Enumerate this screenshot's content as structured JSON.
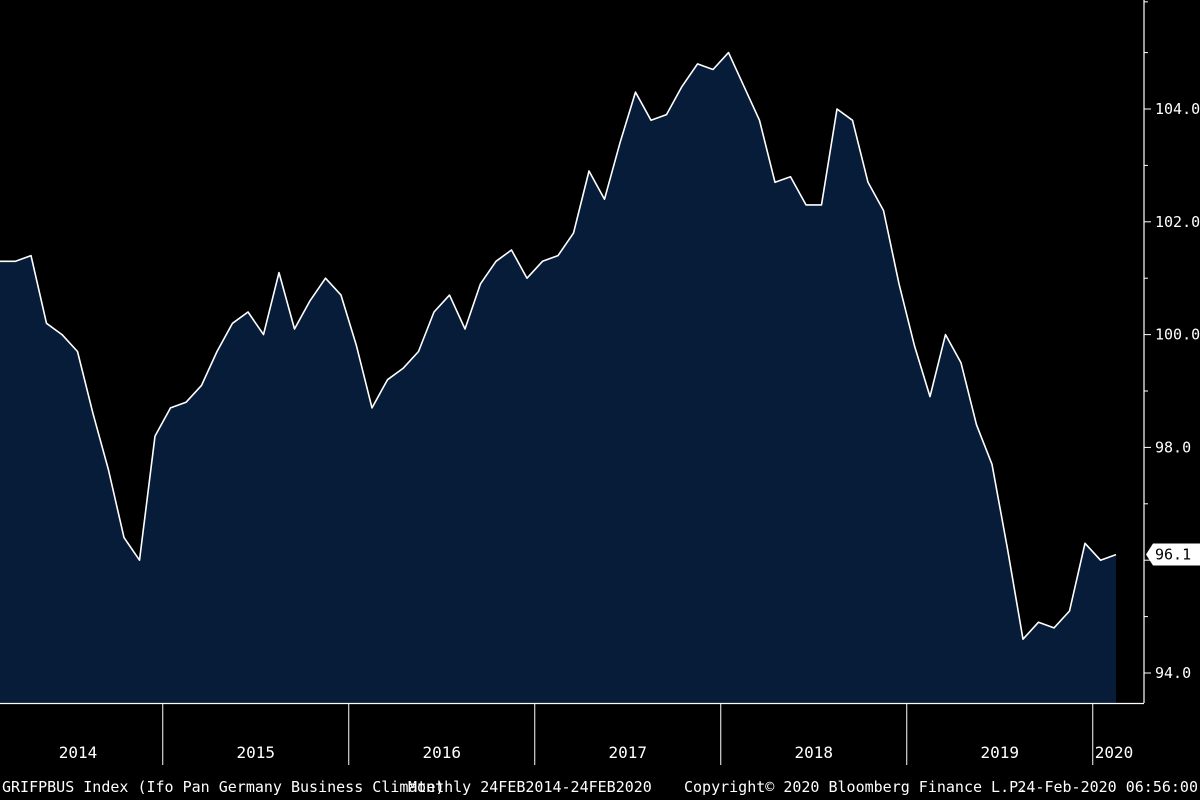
{
  "chart_data": {
    "type": "area",
    "title": "",
    "xlabel": "",
    "ylabel": "",
    "ylim": [
      93.5,
      105.8
    ],
    "yticks": [
      "94.0",
      "96.0",
      "98.0",
      "100.0",
      "102.0",
      "104.0"
    ],
    "years": [
      "2014",
      "2015",
      "2016",
      "2017",
      "2018",
      "2019",
      "2020"
    ],
    "last_value_label": "96.1",
    "x": [
      "2014-02",
      "2014-03",
      "2014-04",
      "2014-05",
      "2014-06",
      "2014-07",
      "2014-08",
      "2014-09",
      "2014-10",
      "2014-11",
      "2014-12",
      "2015-01",
      "2015-02",
      "2015-03",
      "2015-04",
      "2015-05",
      "2015-06",
      "2015-07",
      "2015-08",
      "2015-09",
      "2015-10",
      "2015-11",
      "2015-12",
      "2016-01",
      "2016-02",
      "2016-03",
      "2016-04",
      "2016-05",
      "2016-06",
      "2016-07",
      "2016-08",
      "2016-09",
      "2016-10",
      "2016-11",
      "2016-12",
      "2017-01",
      "2017-02",
      "2017-03",
      "2017-04",
      "2017-05",
      "2017-06",
      "2017-07",
      "2017-08",
      "2017-09",
      "2017-10",
      "2017-11",
      "2017-12",
      "2018-01",
      "2018-02",
      "2018-03",
      "2018-04",
      "2018-05",
      "2018-06",
      "2018-07",
      "2018-08",
      "2018-09",
      "2018-10",
      "2018-11",
      "2018-12",
      "2019-01",
      "2019-02",
      "2019-03",
      "2019-04",
      "2019-05",
      "2019-06",
      "2019-07",
      "2019-08",
      "2019-09",
      "2019-10",
      "2019-11",
      "2019-12",
      "2020-01",
      "2020-02"
    ],
    "series": [
      {
        "values": [
          101.3,
          101.3,
          101.4,
          100.2,
          100.0,
          99.7,
          98.6,
          97.6,
          96.4,
          96.0,
          98.2,
          98.7,
          98.8,
          99.1,
          99.7,
          100.2,
          100.4,
          100.0,
          101.1,
          100.1,
          100.6,
          101.0,
          100.7,
          99.8,
          98.7,
          99.2,
          99.4,
          99.7,
          100.4,
          100.7,
          100.1,
          100.9,
          101.3,
          101.5,
          101.0,
          101.3,
          101.4,
          101.8,
          102.9,
          102.4,
          103.4,
          104.3,
          103.8,
          103.9,
          104.4,
          104.8,
          104.7,
          105.0,
          104.4,
          103.8,
          102.7,
          102.8,
          102.3,
          102.3,
          104.0,
          103.8,
          102.7,
          102.2,
          100.9,
          99.8,
          98.9,
          100.0,
          99.5,
          98.4,
          97.7,
          96.2,
          94.6,
          94.9,
          94.8,
          95.1,
          96.3,
          96.0,
          96.1
        ]
      }
    ],
    "colors": {
      "fill": "#071c38",
      "line": "#ffffff",
      "background": "#000000",
      "axis": "#ffffff"
    }
  },
  "footer": {
    "index_text": "GRIFPBUS Index (Ifo Pan Germany Business Climate)",
    "period_text": "Monthly 24FEB2014-24FEB2020",
    "copyright_text": "Copyright© 2020 Bloomberg Finance L.P.",
    "timestamp_text": "24-Feb-2020 06:56:00"
  }
}
